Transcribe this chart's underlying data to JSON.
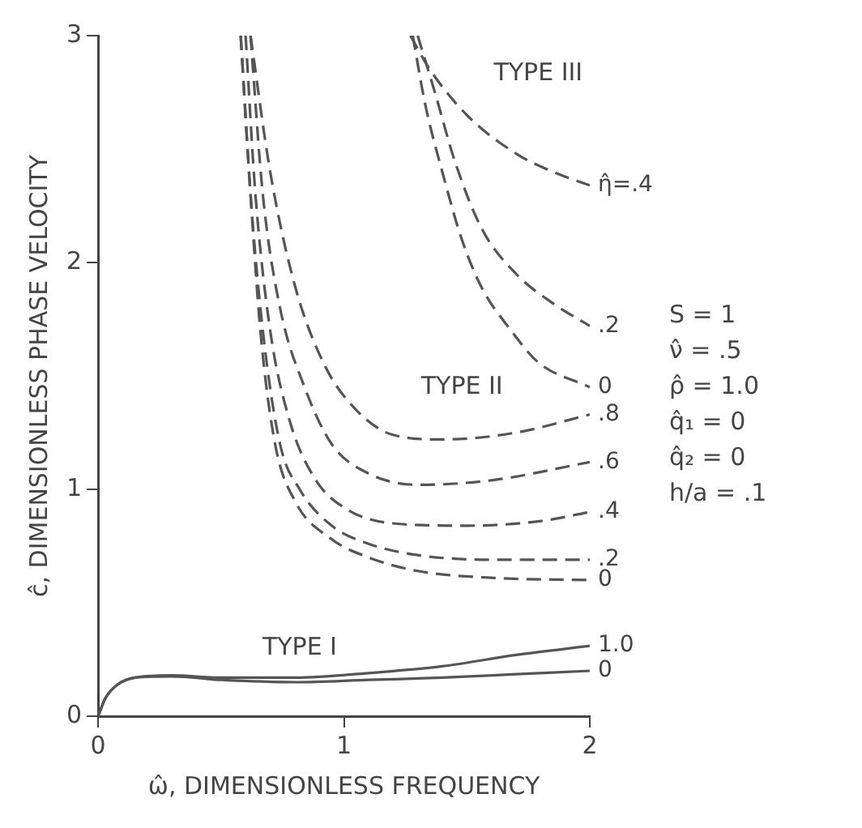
{
  "chart_data": {
    "type": "line",
    "xlabel": "ω̂, DIMENSIONLESS FREQUENCY",
    "ylabel": "ĉ, DIMENSIONLESS PHASE VELOCITY",
    "xlim": [
      0,
      2
    ],
    "ylim": [
      0,
      3
    ],
    "xticks": [
      0,
      1,
      2
    ],
    "yticks": [
      0,
      1,
      2,
      3
    ],
    "grid": false,
    "legend": false,
    "series": [
      {
        "name": "1.0",
        "color": "#555555",
        "line_style": "solid",
        "x": [
          0,
          0.03,
          0.08,
          0.15,
          0.3,
          0.5,
          0.8,
          1.1,
          1.4,
          1.7,
          2
        ],
        "values": [
          0,
          0.08,
          0.14,
          0.17,
          0.18,
          0.17,
          0.17,
          0.19,
          0.22,
          0.27,
          0.31
        ]
      },
      {
        "name": "0",
        "color": "#555555",
        "line_style": "solid",
        "x": [
          0,
          0.03,
          0.08,
          0.15,
          0.3,
          0.5,
          0.8,
          1.1,
          1.4,
          1.7,
          2
        ],
        "values": [
          0,
          0.08,
          0.14,
          0.17,
          0.175,
          0.16,
          0.15,
          0.16,
          0.17,
          0.185,
          0.2
        ]
      },
      {
        "name": ".8",
        "color": "#555555",
        "line_style": "dashed",
        "x": [
          0.62,
          0.7,
          0.8,
          0.92,
          1.05,
          1.2,
          1.4,
          1.7,
          2
        ],
        "values": [
          3,
          2.4,
          1.9,
          1.55,
          1.35,
          1.24,
          1.22,
          1.25,
          1.33
        ]
      },
      {
        "name": ".6",
        "color": "#555555",
        "line_style": "dashed",
        "x": [
          0.62,
          0.67,
          0.74,
          0.84,
          0.95,
          1.1,
          1.3,
          1.6,
          2
        ],
        "values": [
          3,
          2.3,
          1.8,
          1.45,
          1.2,
          1.07,
          1.02,
          1.04,
          1.12
        ]
      },
      {
        "name": ".4",
        "color": "#555555",
        "line_style": "dashed",
        "x": [
          0.6,
          0.64,
          0.7,
          0.78,
          0.88,
          1,
          1.2,
          1.5,
          1.8,
          2
        ],
        "values": [
          3,
          2.3,
          1.7,
          1.3,
          1.05,
          0.92,
          0.85,
          0.84,
          0.86,
          0.9
        ]
      },
      {
        "name": ".2",
        "color": "#555555",
        "line_style": "dashed",
        "x": [
          0.58,
          0.62,
          0.67,
          0.74,
          0.82,
          0.95,
          1.1,
          1.3,
          1.6,
          2
        ],
        "values": [
          3,
          2.3,
          1.7,
          1.2,
          1,
          0.84,
          0.76,
          0.71,
          0.69,
          0.69
        ]
      },
      {
        "name": "0",
        "color": "#555555",
        "line_style": "dashed",
        "x": [
          0.58,
          0.62,
          0.66,
          0.72,
          0.8,
          0.95,
          1.1,
          1.3,
          1.6,
          2
        ],
        "values": [
          3,
          2.3,
          1.7,
          1.2,
          0.95,
          0.78,
          0.7,
          0.64,
          0.61,
          0.6
        ]
      },
      {
        "name": "η̂=.4",
        "color": "#555555",
        "line_style": "dashed",
        "x": [
          1.27,
          1.35,
          1.5,
          1.7,
          1.85,
          2
        ],
        "values": [
          3,
          2.85,
          2.65,
          2.48,
          2.4,
          2.34
        ]
      },
      {
        "name": ".2",
        "color": "#555555",
        "line_style": "dashed",
        "x": [
          1.3,
          1.37,
          1.45,
          1.56,
          1.7,
          1.85,
          2
        ],
        "values": [
          3,
          2.75,
          2.45,
          2.15,
          1.95,
          1.82,
          1.72
        ]
      },
      {
        "name": "0",
        "color": "#555555",
        "line_style": "dashed",
        "x": [
          1.28,
          1.33,
          1.4,
          1.48,
          1.56,
          1.68,
          1.79,
          2
        ],
        "values": [
          3,
          2.7,
          2.4,
          2.1,
          1.89,
          1.7,
          1.56,
          1.45
        ]
      }
    ],
    "annotations": [
      "TYPE I",
      "TYPE II",
      "TYPE III",
      "S = 1",
      "ν̂ = .5",
      "ρ̂ = 1.0",
      "q̂₁ = 0",
      "q̂₂ = 0",
      "h/a = .1"
    ]
  }
}
